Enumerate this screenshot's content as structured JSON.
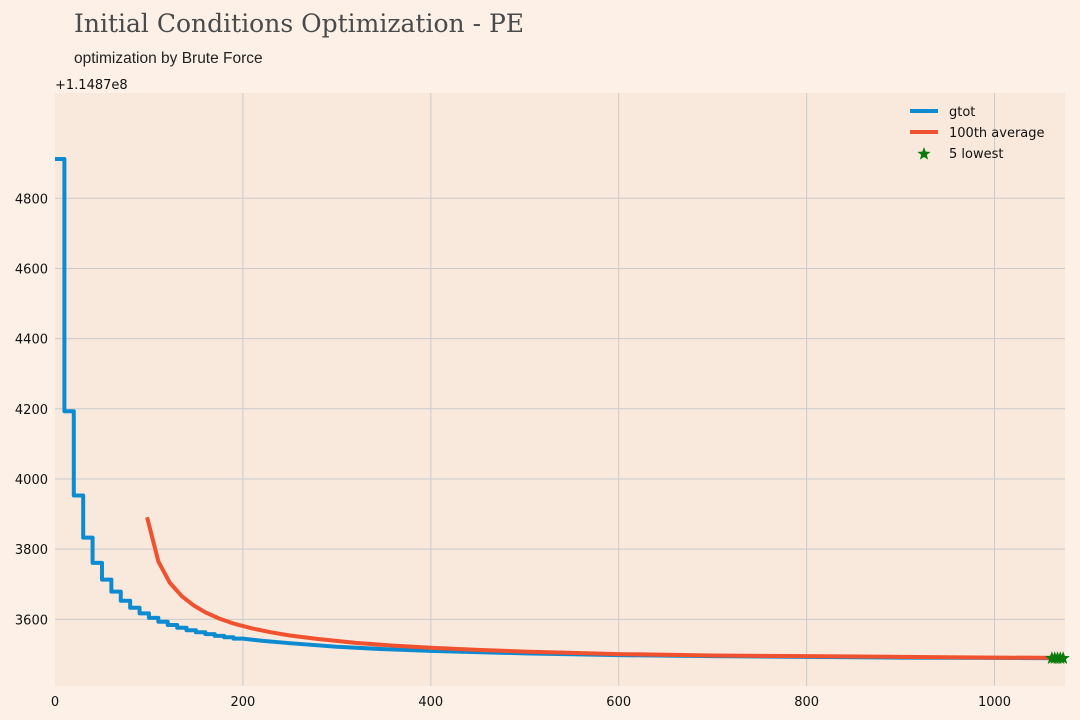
{
  "chart_data": {
    "type": "line",
    "title": "Initial Conditions Optimization - PE",
    "subtitle": "optimization by Brute Force",
    "xlabel": "",
    "ylabel": "",
    "y_offset_label": "+1.1487e8",
    "y_offset": 114870000,
    "xlim": [
      0,
      1075
    ],
    "ylim": [
      3410,
      5100
    ],
    "x_ticks": [
      0,
      200,
      400,
      600,
      800,
      1000
    ],
    "y_ticks": [
      3600,
      3800,
      4000,
      4200,
      4400,
      4600,
      4800
    ],
    "x_tick_labels": [
      "0",
      "200",
      "400",
      "600",
      "800",
      "1000"
    ],
    "y_tick_labels": [
      "3600",
      "3800",
      "4000",
      "4200",
      "4400",
      "4600",
      "4800"
    ],
    "grid": true,
    "legend_position": "top-right",
    "series": [
      {
        "name": "gtot",
        "kind": "step",
        "color": "#0d8bd1",
        "points": [
          [
            0,
            4912
          ],
          [
            10,
            4912
          ],
          [
            10,
            4193
          ],
          [
            20,
            4193
          ],
          [
            20,
            3953
          ],
          [
            30,
            3953
          ],
          [
            30,
            3833
          ],
          [
            40,
            3833
          ],
          [
            40,
            3761
          ],
          [
            50,
            3761
          ],
          [
            50,
            3713
          ],
          [
            60,
            3713
          ],
          [
            60,
            3679
          ],
          [
            70,
            3679
          ],
          [
            70,
            3653
          ],
          [
            80,
            3653
          ],
          [
            80,
            3633
          ],
          [
            90,
            3633
          ],
          [
            90,
            3617
          ],
          [
            100,
            3617
          ],
          [
            100,
            3604
          ],
          [
            110,
            3604
          ],
          [
            110,
            3593
          ],
          [
            120,
            3593
          ],
          [
            120,
            3584
          ],
          [
            130,
            3584
          ],
          [
            130,
            3576
          ],
          [
            140,
            3576
          ],
          [
            140,
            3569
          ],
          [
            150,
            3569
          ],
          [
            150,
            3563
          ],
          [
            160,
            3563
          ],
          [
            160,
            3558
          ],
          [
            170,
            3558
          ],
          [
            170,
            3553
          ],
          [
            180,
            3553
          ],
          [
            180,
            3549
          ],
          [
            190,
            3549
          ],
          [
            190,
            3545
          ],
          [
            200,
            3545
          ],
          [
            220,
            3539
          ],
          [
            250,
            3532
          ],
          [
            300,
            3522
          ],
          [
            350,
            3515
          ],
          [
            400,
            3510
          ],
          [
            500,
            3503
          ],
          [
            600,
            3498
          ],
          [
            700,
            3495
          ],
          [
            800,
            3493
          ],
          [
            900,
            3491
          ],
          [
            1000,
            3490
          ],
          [
            1075,
            3489
          ]
        ]
      },
      {
        "name": "100th average",
        "kind": "line",
        "color": "#f0512e",
        "points": [
          [
            98,
            3891
          ],
          [
            110,
            3765
          ],
          [
            122,
            3705
          ],
          [
            135,
            3666
          ],
          [
            148,
            3639
          ],
          [
            160,
            3620
          ],
          [
            175,
            3602
          ],
          [
            190,
            3588
          ],
          [
            210,
            3574
          ],
          [
            230,
            3563
          ],
          [
            250,
            3554
          ],
          [
            280,
            3544
          ],
          [
            320,
            3533
          ],
          [
            360,
            3525
          ],
          [
            400,
            3519
          ],
          [
            450,
            3513
          ],
          [
            500,
            3508
          ],
          [
            600,
            3501
          ],
          [
            700,
            3497
          ],
          [
            800,
            3495
          ],
          [
            900,
            3493
          ],
          [
            1000,
            3491
          ],
          [
            1075,
            3490
          ]
        ]
      },
      {
        "name": "5 lowest",
        "kind": "scatter",
        "marker": "star",
        "color": "#0a7a0a",
        "points": [
          [
            1061,
            3489
          ],
          [
            1064,
            3489
          ],
          [
            1067,
            3489
          ],
          [
            1070,
            3489
          ],
          [
            1073,
            3489
          ]
        ]
      }
    ]
  }
}
